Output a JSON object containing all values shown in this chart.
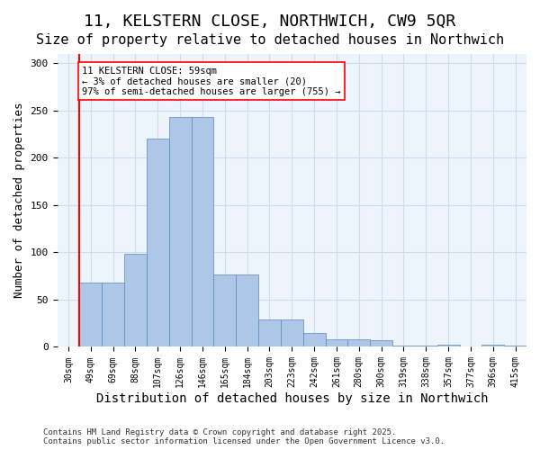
{
  "title": "11, KELSTERN CLOSE, NORTHWICH, CW9 5QR",
  "subtitle": "Size of property relative to detached houses in Northwich",
  "xlabel": "Distribution of detached houses by size in Northwich",
  "ylabel": "Number of detached properties",
  "categories": [
    "30sqm",
    "49sqm",
    "69sqm",
    "88sqm",
    "107sqm",
    "126sqm",
    "146sqm",
    "165sqm",
    "184sqm",
    "203sqm",
    "223sqm",
    "242sqm",
    "261sqm",
    "280sqm",
    "300sqm",
    "319sqm",
    "338sqm",
    "357sqm",
    "377sqm",
    "396sqm",
    "415sqm"
  ],
  "bar_values": [
    0,
    68,
    68,
    99,
    220,
    243,
    243,
    77,
    77,
    29,
    29,
    15,
    8,
    8,
    7,
    1,
    1,
    2,
    0,
    2,
    1
  ],
  "bar_color": "#aec6e8",
  "bar_edge_color": "#5588bb",
  "grid_color": "#ccddee",
  "background_color": "#eef4fb",
  "vline_color": "red",
  "annotation_text": "11 KELSTERN CLOSE: 59sqm\n← 3% of detached houses are smaller (20)\n97% of semi-detached houses are larger (755) →",
  "annotation_box_color": "white",
  "annotation_box_edge": "red",
  "footer_text": "Contains HM Land Registry data © Crown copyright and database right 2025.\nContains public sector information licensed under the Open Government Licence v3.0.",
  "ylim": [
    0,
    310
  ],
  "title_fontsize": 13,
  "subtitle_fontsize": 11,
  "xlabel_fontsize": 10,
  "ylabel_fontsize": 9,
  "tick_fontsize": 8
}
